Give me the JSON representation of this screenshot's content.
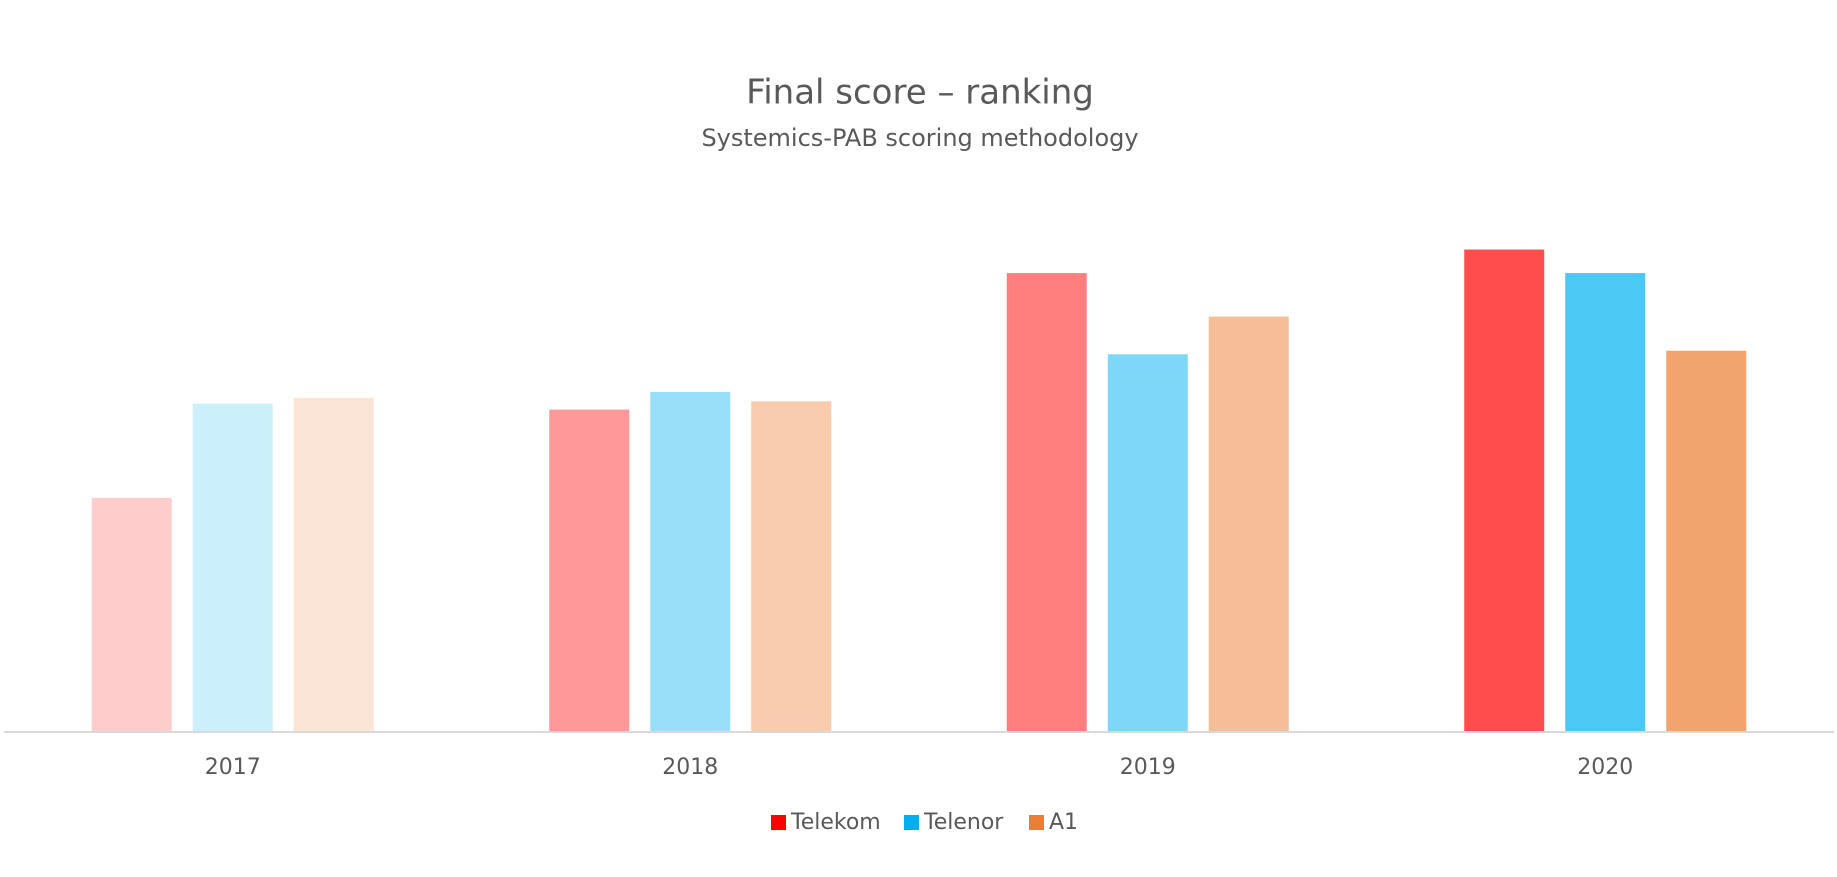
{
  "chart_data": {
    "type": "bar",
    "title": "Final score – ranking",
    "subtitle": "Systemics-PAB scoring methodology",
    "categories": [
      "2017",
      "2018",
      "2019",
      "2020"
    ],
    "series": [
      {
        "name": "Telekom",
        "color": "#ff0000",
        "values": [
          199,
          274,
          390,
          410
        ]
      },
      {
        "name": "Telenor",
        "color": "#00b0f0",
        "values": [
          279,
          289,
          321,
          390
        ]
      },
      {
        "name": "A1",
        "color": "#ed7d31",
        "values": [
          284,
          281,
          353,
          324
        ]
      }
    ],
    "category_opacity": [
      0.2,
      0.4,
      0.5,
      0.7
    ],
    "ylim": [
      0,
      430
    ],
    "legend": "bottom"
  }
}
